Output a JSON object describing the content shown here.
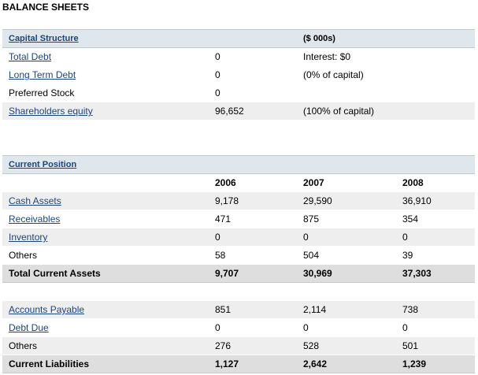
{
  "page_title": "BALANCE SHEETS",
  "capital_structure": {
    "header_label": "Capital Structure",
    "header_unit": "($ 000s)",
    "rows": [
      {
        "label": "Total Debt",
        "link": true,
        "value": "0",
        "note": "Interest:  $0"
      },
      {
        "label": "Long Term Debt",
        "link": true,
        "value": "0",
        "note": "(0% of capital)"
      },
      {
        "label": "Preferred Stock",
        "link": false,
        "value": "0",
        "note": ""
      },
      {
        "label": "Shareholders equity",
        "link": true,
        "value": "96,652",
        "note": "(100% of capital)"
      }
    ]
  },
  "current_position": {
    "header_label": "Current Position",
    "years": [
      "2006",
      "2007",
      "2008"
    ],
    "assets": [
      {
        "label": "Cash Assets",
        "link": true,
        "values": [
          "9,178",
          "29,590",
          "36,910"
        ]
      },
      {
        "label": "Receivables",
        "link": true,
        "values": [
          "471",
          "875",
          "354"
        ]
      },
      {
        "label": "Inventory",
        "link": true,
        "values": [
          "0",
          "0",
          "0"
        ]
      },
      {
        "label": "Others",
        "link": false,
        "values": [
          "58",
          "504",
          "39"
        ]
      }
    ],
    "total_assets": {
      "label": "Total Current Assets",
      "values": [
        "9,707",
        "30,969",
        "37,303"
      ]
    },
    "liabilities": [
      {
        "label": "Accounts Payable",
        "link": true,
        "values": [
          "851",
          "2,114",
          "738"
        ]
      },
      {
        "label": "Debt Due",
        "link": true,
        "values": [
          "0",
          "0",
          "0"
        ]
      },
      {
        "label": "Others",
        "link": false,
        "values": [
          "276",
          "528",
          "501"
        ]
      }
    ],
    "total_liabilities": {
      "label": "Current Liabilities",
      "values": [
        "1,127",
        "2,642",
        "1,239"
      ]
    }
  }
}
